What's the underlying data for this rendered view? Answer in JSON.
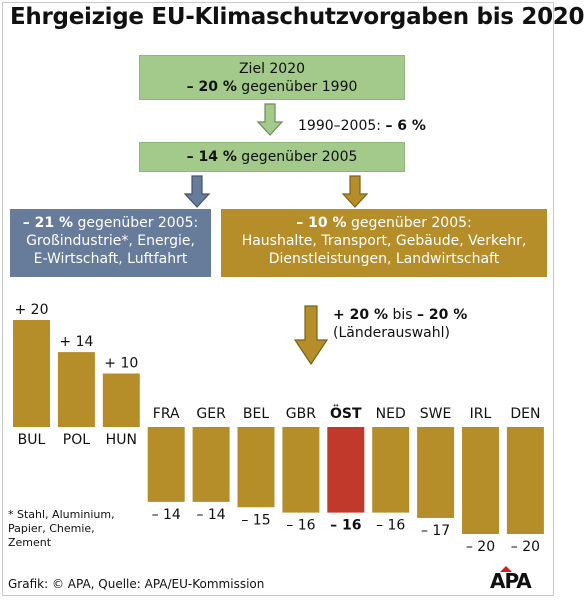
{
  "title": "Ehrgeizige EU-Klimaschutzvorgaben bis 2020",
  "diagram": {
    "target_box": {
      "line1": "Ziel 2020",
      "bold": "– 20 %",
      "rest": " gegenüber 1990"
    },
    "progress_note": {
      "text": "1990–2005: ",
      "bold": "– 6 %"
    },
    "base_box": {
      "bold": "– 14 %",
      "rest": " gegenüber 2005"
    },
    "industry_box": {
      "bold": "– 21 %",
      "rest": " gegenüber 2005:",
      "line2": "Großindustrie*, Energie,",
      "line3": "E-Wirtschaft, Luftfahrt"
    },
    "households_box": {
      "bold": "– 10 %",
      "rest": " gegenüber 2005:",
      "line2": "Haushalte, Transport, Gebäude, Verkehr,",
      "line3": "Dienstleistungen, Landwirtschaft"
    },
    "range_note": {
      "bold1": "+ 20 %",
      "mid": " bis ",
      "bold2": "– 20 %",
      "line2": "(Länderauswahl)"
    }
  },
  "chart_data": {
    "type": "bar",
    "categories": [
      "BUL",
      "POL",
      "HUN",
      "FRA",
      "GER",
      "BEL",
      "GBR",
      "ÖST",
      "NED",
      "SWE",
      "IRL",
      "DEN"
    ],
    "values": [
      20,
      14,
      10,
      -14,
      -14,
      -15,
      -16,
      -16,
      -16,
      -17,
      -20,
      -20
    ],
    "value_labels": [
      "+ 20",
      "+ 14",
      "+ 10",
      "– 14",
      "– 14",
      "– 15",
      "– 16",
      "– 16",
      "– 16",
      "– 17",
      "– 20",
      "– 20"
    ],
    "highlight": "ÖST",
    "colors": {
      "bar": "#b58e2a",
      "highlight": "#c0392b"
    }
  },
  "colors": {
    "green": "#a3c98b",
    "blue": "#677b9b",
    "gold": "#b58e2a",
    "red": "#c0392b"
  },
  "footnote": {
    "line1": "* Stahl, Aluminium,",
    "line2": "Papier, Chemie,",
    "line3": "Zement"
  },
  "source": "Grafik: © APA, Quelle: APA/EU-Kommission",
  "logo": "APA"
}
